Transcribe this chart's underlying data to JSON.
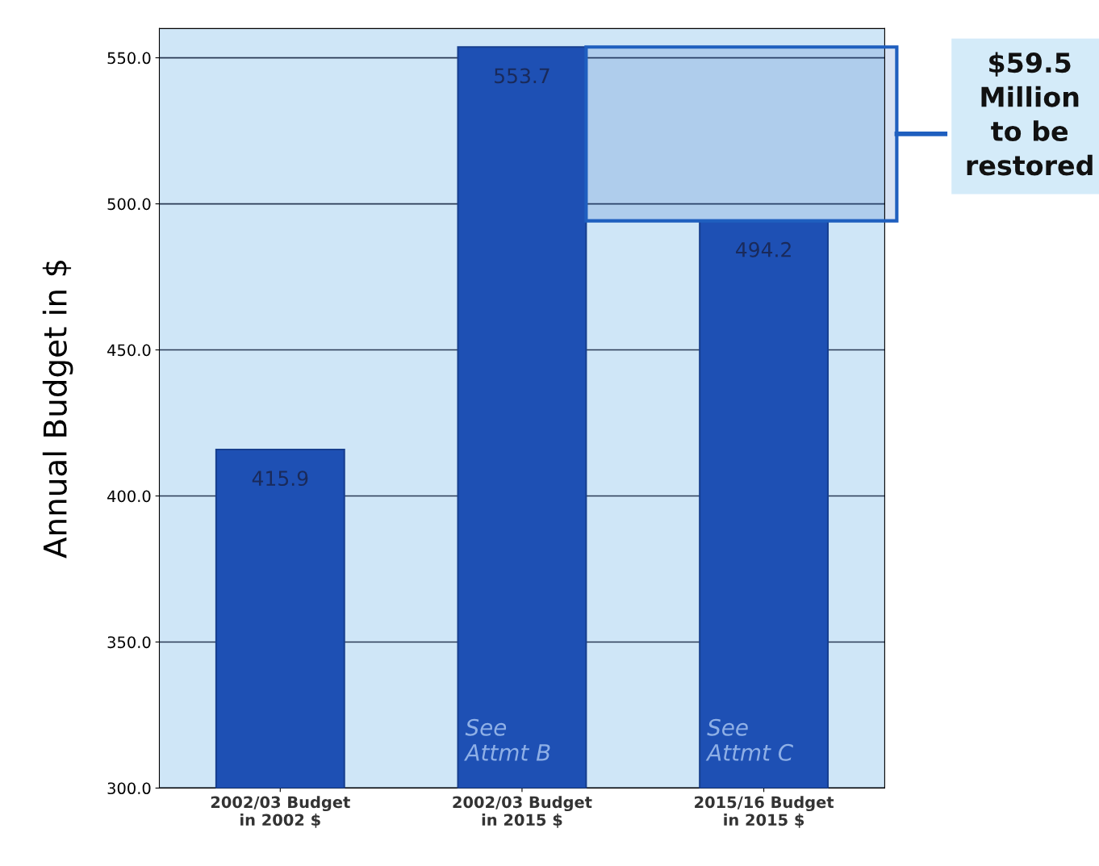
{
  "chart_data": {
    "type": "bar",
    "ylabel": "Annual Budget in $",
    "categories": [
      "2002/03 Budget\nin 2002 $",
      "2002/03 Budget\nin 2015 $",
      "2015/16 Budget\nin 2015 $"
    ],
    "values": [
      415.9,
      553.7,
      494.2
    ],
    "color": "#1e50b4",
    "data_labels": true,
    "ylim": [
      300,
      560
    ],
    "yticks": [
      {
        "value": 300,
        "label": "300.0"
      },
      {
        "value": 350,
        "label": "350.0"
      },
      {
        "value": 400,
        "label": "400.0"
      },
      {
        "value": 450,
        "label": "450.0"
      },
      {
        "value": 500,
        "label": "500.0"
      },
      {
        "value": 550,
        "label": "550.0"
      }
    ],
    "grid": "y",
    "annotations": [
      "See\nAttmt B",
      "See\nAttmt C"
    ],
    "bands": [
      {
        "axis": "y",
        "from": 494.2,
        "to": 553.7,
        "label": "$59.5\nMillion\nto be\nrestored",
        "color": "#1f5fbf"
      }
    ]
  }
}
